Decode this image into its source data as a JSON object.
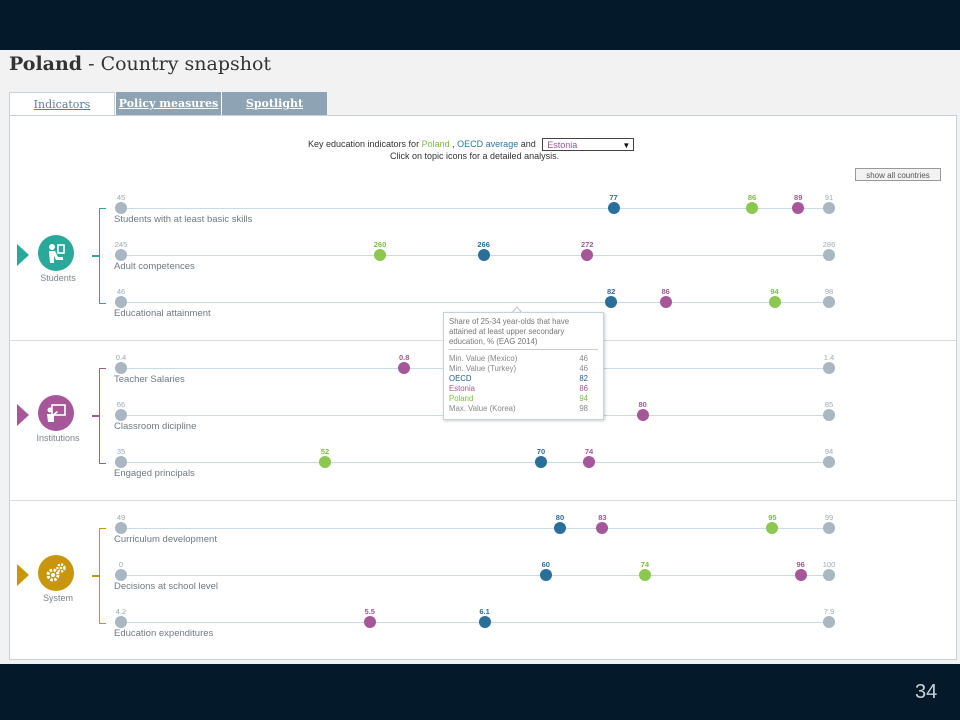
{
  "title": {
    "country": "Poland",
    "suffix": "- Country snapshot"
  },
  "tabs": [
    {
      "label": "Indicators",
      "active": true
    },
    {
      "label": "Policy measures",
      "active": false
    },
    {
      "label": "Spotlight",
      "active": false
    }
  ],
  "intro": {
    "prefix": "Key education indicators for",
    "country": "Poland",
    "sep": ",",
    "oecd": "OECD average",
    "and": "and",
    "selected_country": "Estonia",
    "line2": "Click on topic icons for a detailed analysis."
  },
  "show_all_label": "show all countries",
  "colors": {
    "poland": "#8cc850",
    "oecd": "#2a6f9a",
    "estonia": "#a5579a",
    "minmax": "#a9b7c2",
    "students": "#2aa89a",
    "institutions": "#a5579a",
    "system": "#c8960c"
  },
  "groups": [
    {
      "name": "Students",
      "icon": "student-icon",
      "color": "#2aa89a",
      "indicators": [
        {
          "name": "Students with at least basic skills",
          "min": 45,
          "max": 91,
          "oecd": 77,
          "estonia": 89,
          "poland": 86
        },
        {
          "name": "Adult competences",
          "min": 245,
          "max": 286,
          "oecd": 266,
          "estonia": 272,
          "poland": 260
        },
        {
          "name": "Educational attainment",
          "min": 46,
          "max": 98,
          "oecd": 82,
          "estonia": 86,
          "poland": 94
        }
      ]
    },
    {
      "name": "Institutions",
      "icon": "teacher-board-icon",
      "color": "#a5579a",
      "indicators": [
        {
          "name": "Teacher Salaries",
          "min": 0.4,
          "max": 1.4,
          "oecd": null,
          "estonia": 0.8,
          "poland": null
        },
        {
          "name": "Classroom dicipline",
          "min": 66,
          "max": 85,
          "oecd": null,
          "estonia": 80,
          "poland": null
        },
        {
          "name": "Engaged principals",
          "min": 35,
          "max": 94,
          "oecd": 70,
          "estonia": 74,
          "poland": 52
        }
      ]
    },
    {
      "name": "System",
      "icon": "gears-icon",
      "color": "#c8960c",
      "indicators": [
        {
          "name": "Curriculum development",
          "min": 49,
          "max": 99,
          "oecd": 80,
          "estonia": 83,
          "poland": 95
        },
        {
          "name": "Decisions at school level",
          "min": 0,
          "max": 100,
          "oecd": 60,
          "estonia": 96,
          "poland": 74
        },
        {
          "name": "Education expenditures",
          "min": 4.2,
          "max": 7.9,
          "oecd": 6.1,
          "estonia": 5.5,
          "poland": null
        }
      ]
    }
  ],
  "tooltip": {
    "title": "Share of 25-34 year-olds that have attained at least upper secondary education, % (EAG 2014)",
    "rows": [
      {
        "label": "Min. Value (Mexico)",
        "value": "46",
        "color": "#888888"
      },
      {
        "label": "Min. Value (Turkey)",
        "value": "46",
        "color": "#888888"
      },
      {
        "label": "OECD",
        "value": "82",
        "color": "#1f5f8a"
      },
      {
        "label": "Estonia",
        "value": "86",
        "color": "#a5579a"
      },
      {
        "label": "Poland",
        "value": "94",
        "color": "#7bbf3c"
      },
      {
        "label": "Max. Value (Korea)",
        "value": "98",
        "color": "#888888"
      }
    ]
  },
  "slide_number": "34"
}
